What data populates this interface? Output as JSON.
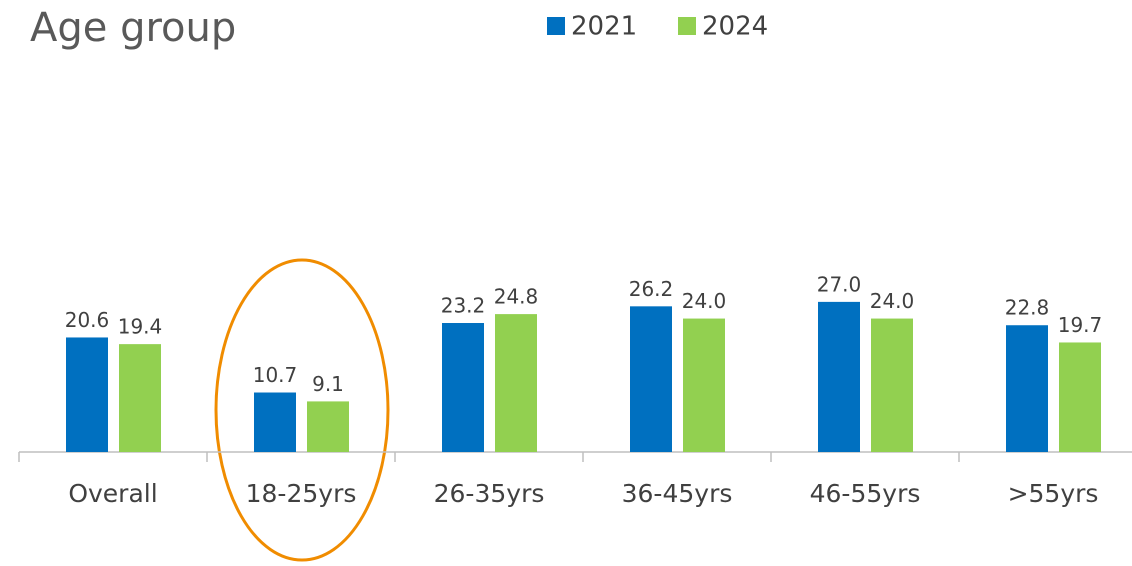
{
  "chart_data": {
    "type": "bar",
    "title": "Age group",
    "categories": [
      "Overall",
      "18-25yrs",
      "26-35yrs",
      "36-45yrs",
      "46-55yrs",
      ">55yrs"
    ],
    "series": [
      {
        "name": "2021",
        "color": "#0070c0",
        "values": [
          20.6,
          10.7,
          23.2,
          26.2,
          27.0,
          22.8
        ],
        "value_labels": [
          "20.6",
          "10.7",
          "23.2",
          "26.2",
          "27.0",
          "22.8"
        ]
      },
      {
        "name": "2024",
        "color": "#92d050",
        "values": [
          19.4,
          9.1,
          24.8,
          24.0,
          24.0,
          19.7
        ],
        "value_labels": [
          "19.4",
          "9.1",
          "24.8",
          "24.0",
          "24.0",
          "19.7"
        ]
      }
    ]
  }
}
